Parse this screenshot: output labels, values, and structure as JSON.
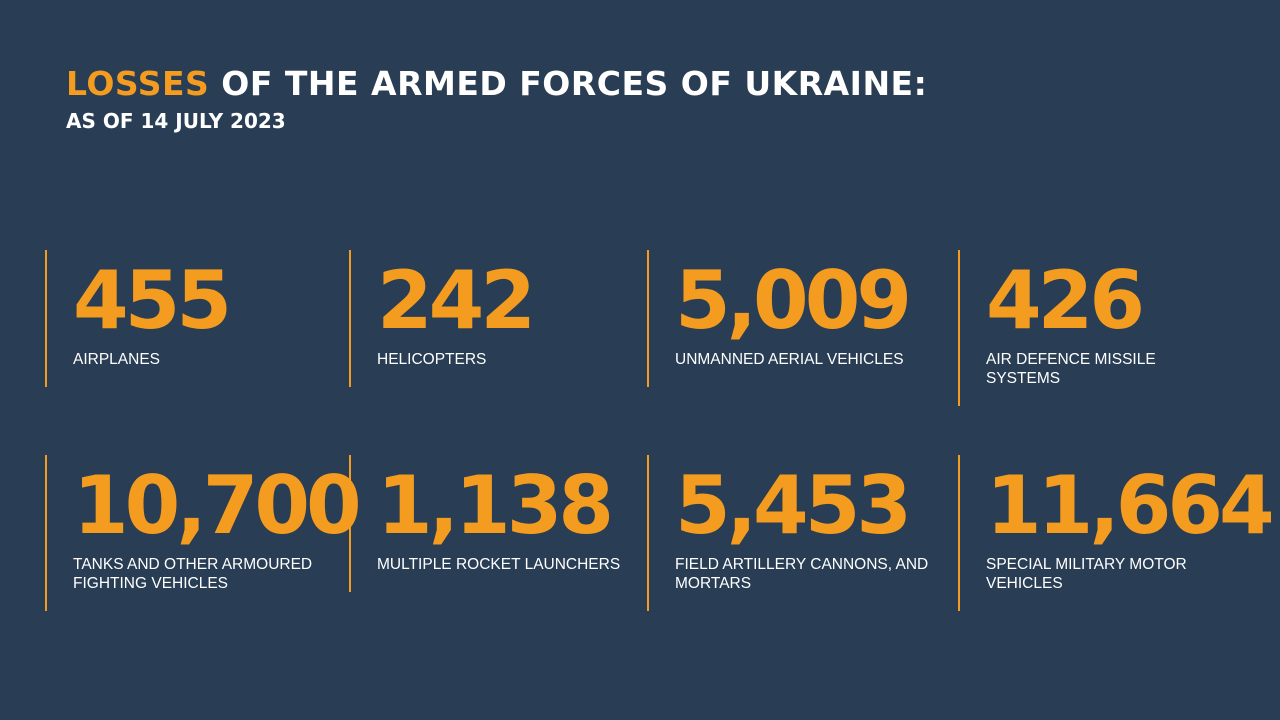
{
  "header": {
    "title_highlight": "LOSSES",
    "title_rest": "OF THE ARMED FORCES OF UKRAINE:",
    "subtitle": "AS OF 14 JULY 2023"
  },
  "stats": [
    {
      "value": "455",
      "label": "AIRPLANES"
    },
    {
      "value": "242",
      "label": "HELICOPTERS"
    },
    {
      "value": "5,009",
      "label": "UNMANNED AERIAL VEHICLES"
    },
    {
      "value": "426",
      "label": "AIR DEFENCE MISSILE SYSTEMS"
    },
    {
      "value": "10,700",
      "label": "TANKS AND OTHER ARMOURED FIGHTING VEHICLES"
    },
    {
      "value": "1,138",
      "label": "MULTIPLE ROCKET LAUNCHERS"
    },
    {
      "value": "5,453",
      "label": "FIELD ARTILLERY CANNONS, AND MORTARS"
    },
    {
      "value": "11,664",
      "label": "SPECIAL MILITARY MOTOR VEHICLES"
    }
  ]
}
